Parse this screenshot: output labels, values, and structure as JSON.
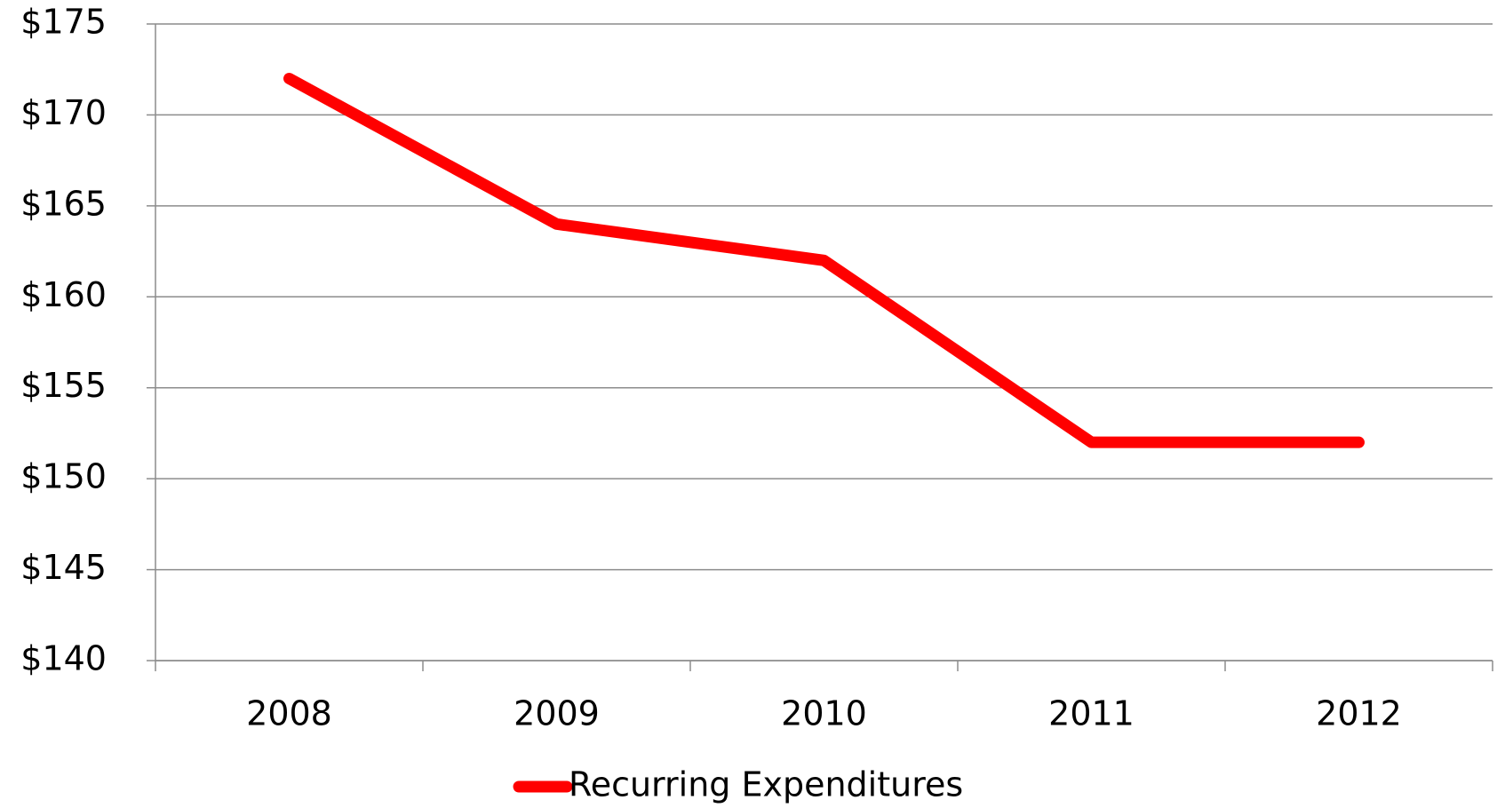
{
  "chart_data": {
    "type": "line",
    "categories": [
      "2008",
      "2009",
      "2010",
      "2011",
      "2012"
    ],
    "series": [
      {
        "name": "Recurring Expenditures",
        "color": "#ff0000",
        "values": [
          172,
          164,
          162,
          152,
          152
        ]
      }
    ],
    "ylim": [
      140,
      175
    ],
    "yticks": [
      {
        "value": 140,
        "label": "$140"
      },
      {
        "value": 145,
        "label": "$145"
      },
      {
        "value": 150,
        "label": "$150"
      },
      {
        "value": 155,
        "label": "$155"
      },
      {
        "value": 160,
        "label": "$160"
      },
      {
        "value": 165,
        "label": "$165"
      },
      {
        "value": 170,
        "label": "$170"
      },
      {
        "value": 175,
        "label": "$175"
      }
    ],
    "grid": true,
    "legend": "bottom"
  }
}
